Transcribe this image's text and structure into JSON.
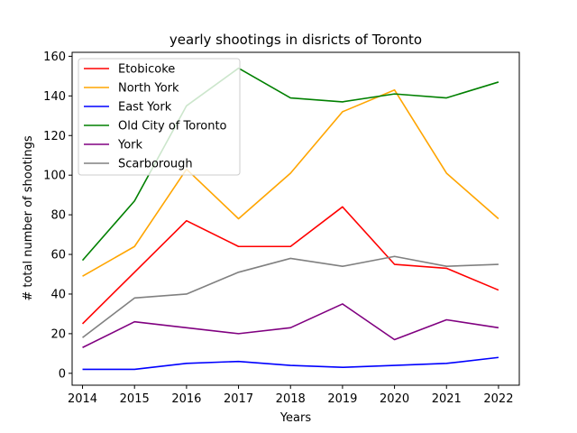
{
  "chart_data": {
    "type": "line",
    "title": "yearly shootings in disricts of Toronto",
    "xlabel": "Years",
    "ylabel": "# total number of shootings",
    "x": [
      2014,
      2015,
      2016,
      2017,
      2018,
      2019,
      2020,
      2021,
      2022
    ],
    "xlim": [
      2013.8,
      2022.4
    ],
    "ylim": [
      -6,
      162
    ],
    "yticks": [
      0,
      20,
      40,
      60,
      80,
      100,
      120,
      140,
      160
    ],
    "grid": false,
    "legend_position": "top-left",
    "series": [
      {
        "name": "Etobicoke",
        "color": "#ff0000",
        "values": [
          25,
          51,
          77,
          64,
          64,
          84,
          55,
          53,
          42
        ]
      },
      {
        "name": "North York",
        "color": "#ffa500",
        "values": [
          49,
          64,
          103,
          78,
          101,
          132,
          143,
          101,
          78
        ]
      },
      {
        "name": "East York",
        "color": "#0000ff",
        "values": [
          2,
          2,
          5,
          6,
          4,
          3,
          4,
          5,
          8
        ]
      },
      {
        "name": "Old City of Toronto",
        "color": "#008000",
        "values": [
          57,
          87,
          135,
          154,
          139,
          137,
          141,
          139,
          147
        ]
      },
      {
        "name": "York",
        "color": "#800080",
        "values": [
          13,
          26,
          23,
          20,
          23,
          35,
          17,
          27,
          23
        ]
      },
      {
        "name": "Scarborough",
        "color": "#808080",
        "values": [
          18,
          38,
          40,
          51,
          58,
          54,
          59,
          54,
          55
        ]
      }
    ]
  }
}
